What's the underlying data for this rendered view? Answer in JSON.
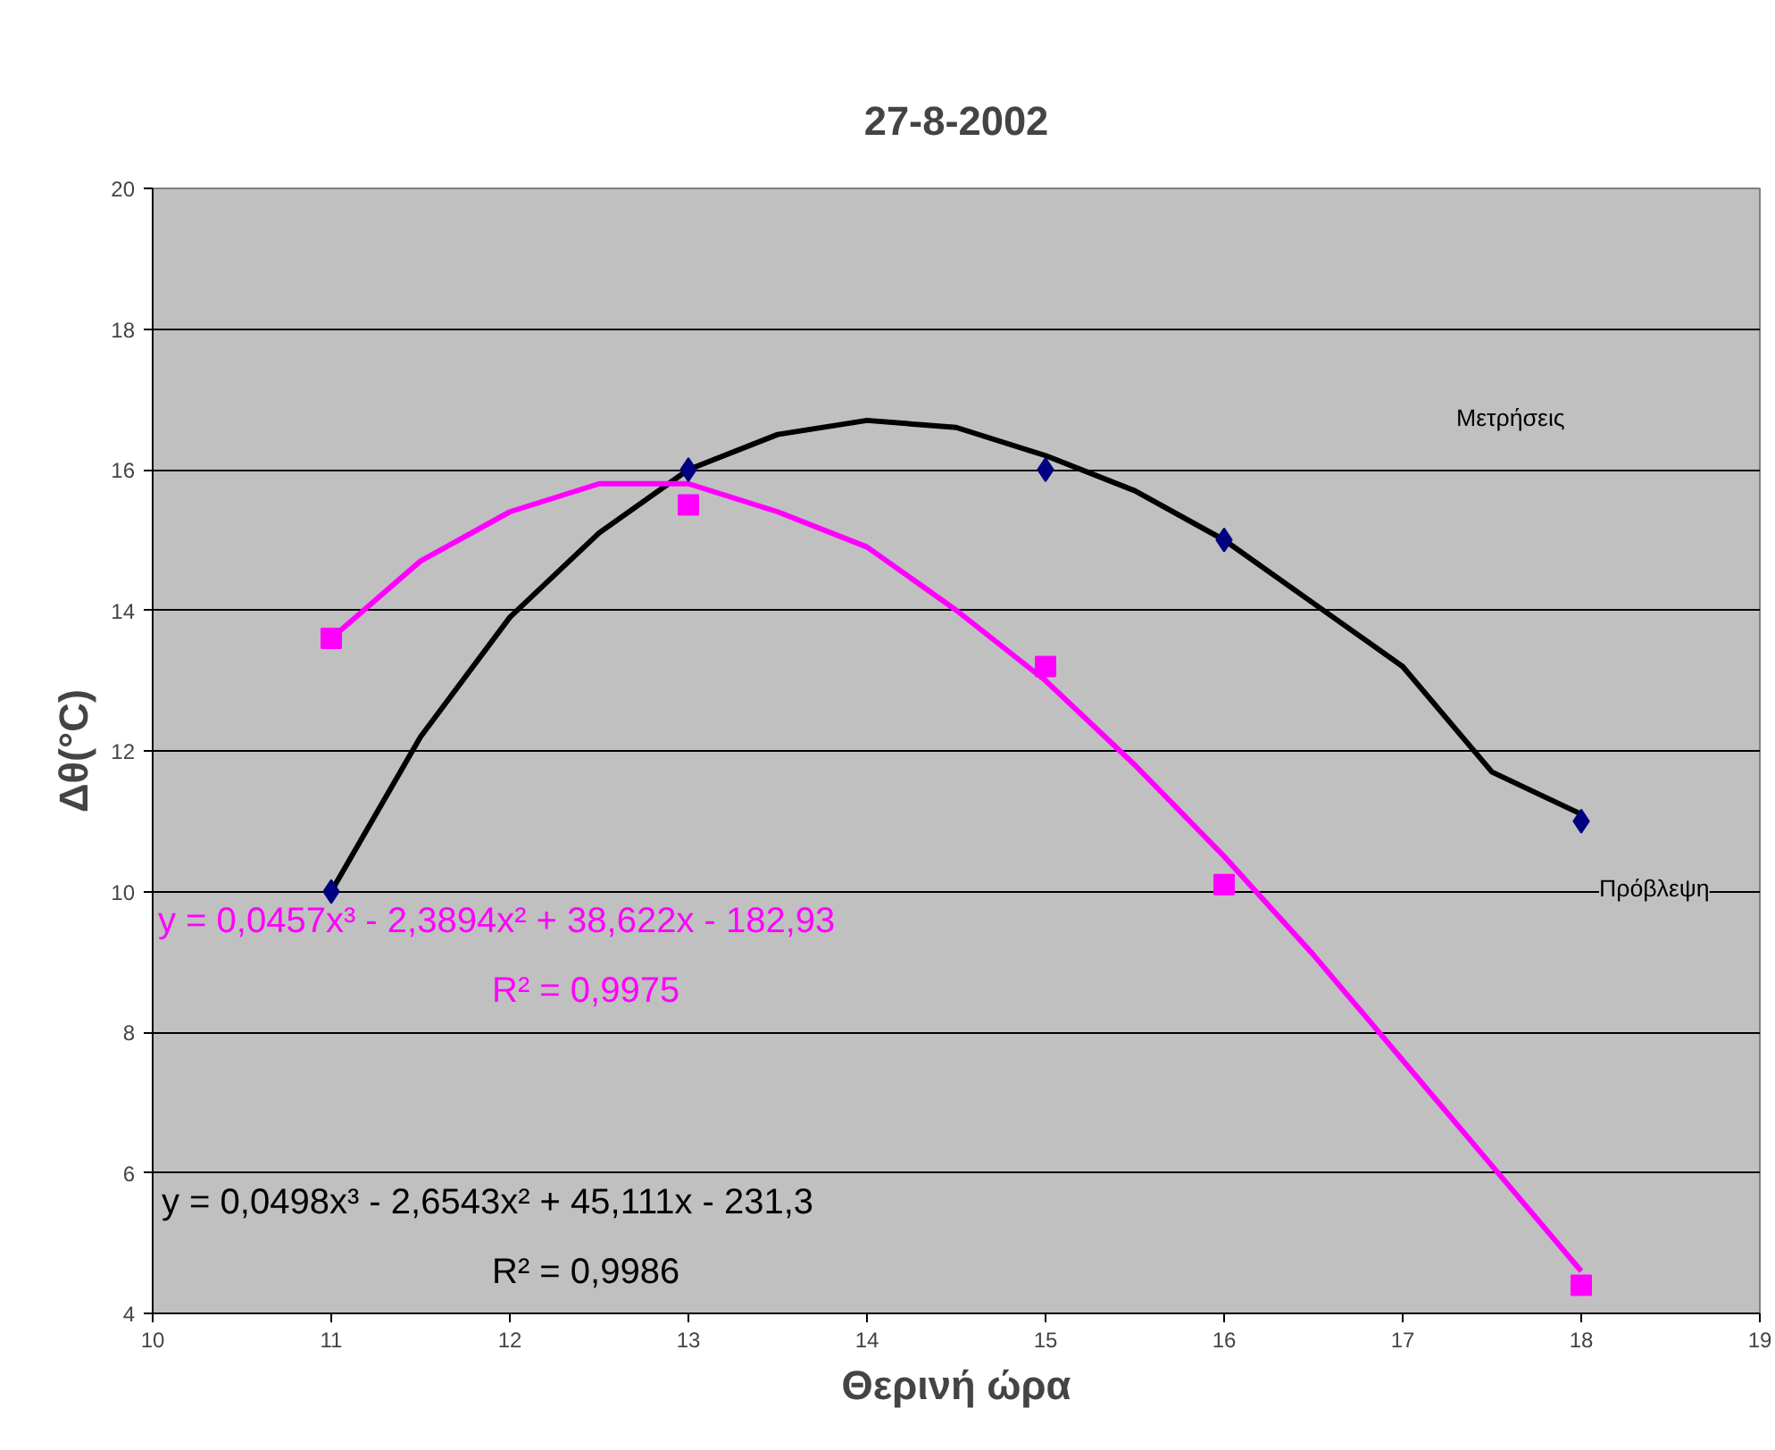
{
  "chart_data": {
    "type": "scatter",
    "title": "27-8-2002",
    "xlabel": "Θερινή ώρα",
    "ylabel": "Δθ(°C)",
    "xlim": [
      10,
      19
    ],
    "xticks": [
      10,
      11,
      12,
      13,
      14,
      15,
      16,
      17,
      18,
      19
    ],
    "ylim": [
      4,
      20
    ],
    "yticks": [
      4,
      6,
      8,
      10,
      12,
      14,
      16,
      18,
      20
    ],
    "grid": "y",
    "series": [
      {
        "type": "line",
        "color": "#000000",
        "marker": "none",
        "x": [
          11,
          11.5,
          12,
          12.5,
          13,
          13.5,
          14,
          14.5,
          15,
          15.5,
          16,
          16.5,
          17,
          17.5,
          18
        ],
        "values": [
          10.0,
          12.2,
          13.9,
          15.1,
          16.0,
          16.5,
          16.7,
          16.6,
          16.2,
          15.7,
          15.0,
          14.1,
          13.2,
          11.7,
          11.1
        ]
      },
      {
        "type": "line",
        "color": "#ff00ff",
        "marker": "none",
        "x": [
          11,
          11.5,
          12,
          12.5,
          13,
          13.5,
          14,
          14.5,
          15,
          15.5,
          16,
          16.5,
          17,
          17.5,
          18
        ],
        "values": [
          13.6,
          14.7,
          15.4,
          15.8,
          15.8,
          15.4,
          14.9,
          14.0,
          13.0,
          11.8,
          10.5,
          9.1,
          7.6,
          6.1,
          4.6
        ]
      },
      {
        "color": "#000080",
        "marker": "diamond",
        "x": [
          11,
          13,
          15,
          16,
          18
        ],
        "values": [
          10,
          16,
          16,
          15,
          11
        ]
      },
      {
        "color": "#ff00ff",
        "marker": "square",
        "x": [
          11,
          13,
          15,
          16,
          18
        ],
        "values": [
          13.6,
          15.5,
          13.2,
          10.1,
          4.4
        ]
      }
    ],
    "annotations": [
      "Μετρήσεις",
      "Πρόβλεψη",
      "y = 0,0457x³ - 2,3894x² + 38,622x - 182,93",
      "R² = 0,9975",
      "y = 0,0498x³ - 2,6543x² + 45,111x - 231,3",
      "R² = 0,9986"
    ]
  }
}
